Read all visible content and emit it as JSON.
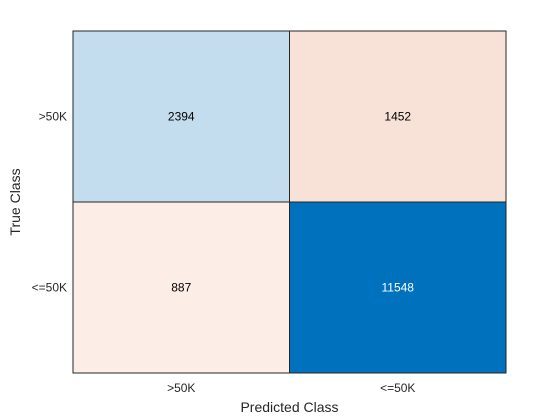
{
  "chart_data": {
    "type": "heatmap",
    "title": "",
    "xlabel": "Predicted Class",
    "ylabel": "True Class",
    "x_categories": [
      ">50K",
      "<=50K"
    ],
    "y_categories": [
      ">50K",
      "<=50K"
    ],
    "values": [
      [
        2394,
        1452
      ],
      [
        887,
        11548
      ]
    ],
    "colors": {
      "correct_high": "#0072BD",
      "correct_low": "#C3DCEE",
      "incorrect_high": "#F8E2D7",
      "incorrect_low": "#FCEEE7",
      "text_dark": "#000000",
      "text_light": "#ffffff",
      "grid": "#262626"
    }
  }
}
